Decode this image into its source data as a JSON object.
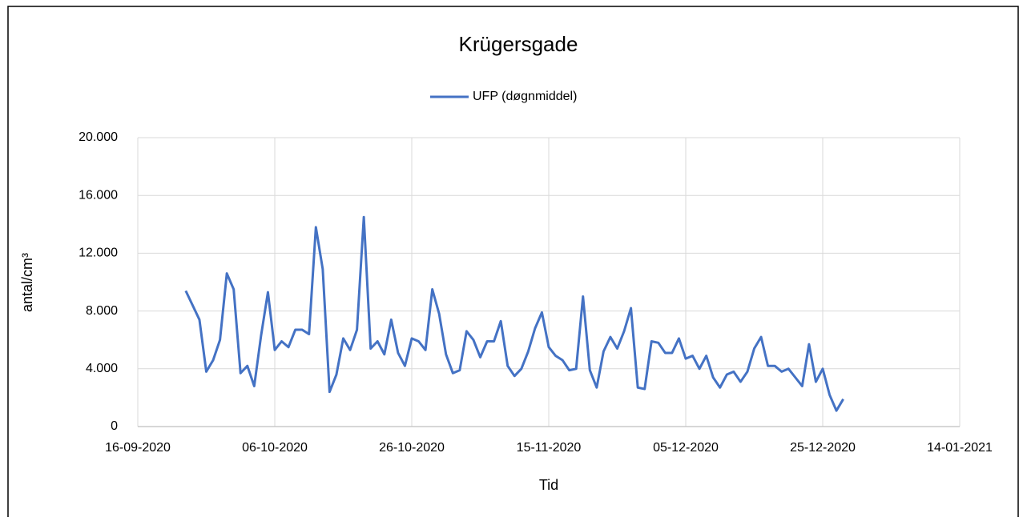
{
  "chart_data": {
    "type": "line",
    "title": "Krügersgade",
    "x": [
      "23-09-2020",
      "24-09-2020",
      "25-09-2020",
      "26-09-2020",
      "27-09-2020",
      "28-09-2020",
      "29-09-2020",
      "30-09-2020",
      "01-10-2020",
      "02-10-2020",
      "03-10-2020",
      "04-10-2020",
      "05-10-2020",
      "06-10-2020",
      "07-10-2020",
      "08-10-2020",
      "09-10-2020",
      "10-10-2020",
      "11-10-2020",
      "12-10-2020",
      "13-10-2020",
      "14-10-2020",
      "15-10-2020",
      "16-10-2020",
      "17-10-2020",
      "18-10-2020",
      "19-10-2020",
      "20-10-2020",
      "21-10-2020",
      "22-10-2020",
      "23-10-2020",
      "24-10-2020",
      "25-10-2020",
      "26-10-2020",
      "27-10-2020",
      "28-10-2020",
      "29-10-2020",
      "30-10-2020",
      "31-10-2020",
      "01-11-2020",
      "02-11-2020",
      "03-11-2020",
      "04-11-2020",
      "05-11-2020",
      "06-11-2020",
      "07-11-2020",
      "08-11-2020",
      "09-11-2020",
      "10-11-2020",
      "11-11-2020",
      "12-11-2020",
      "13-11-2020",
      "14-11-2020",
      "15-11-2020",
      "16-11-2020",
      "17-11-2020",
      "18-11-2020",
      "19-11-2020",
      "20-11-2020",
      "21-11-2020",
      "22-11-2020",
      "23-11-2020",
      "24-11-2020",
      "25-11-2020",
      "26-11-2020",
      "27-11-2020",
      "28-11-2020",
      "29-11-2020",
      "30-11-2020",
      "01-12-2020",
      "02-12-2020",
      "03-12-2020",
      "04-12-2020",
      "05-12-2020",
      "06-12-2020",
      "07-12-2020",
      "08-12-2020",
      "09-12-2020",
      "10-12-2020",
      "11-12-2020",
      "12-12-2020",
      "13-12-2020",
      "14-12-2020",
      "15-12-2020",
      "16-12-2020",
      "17-12-2020",
      "18-12-2020",
      "19-12-2020",
      "20-12-2020",
      "21-12-2020",
      "22-12-2020",
      "23-12-2020",
      "24-12-2020",
      "25-12-2020",
      "26-12-2020",
      "27-12-2020",
      "28-12-2020"
    ],
    "series": [
      {
        "name": "UFP (døgnmiddel)",
        "color": "#4472c4",
        "values": [
          9400,
          8400,
          7400,
          3800,
          4600,
          6000,
          10600,
          9500,
          3700,
          4200,
          2800,
          6300,
          9300,
          5300,
          5900,
          5500,
          6700,
          6700,
          6400,
          13800,
          10900,
          2400,
          3600,
          6100,
          5300,
          6700,
          14500,
          5400,
          5900,
          5000,
          7400,
          5100,
          4200,
          6100,
          5900,
          5300,
          9500,
          7800,
          5000,
          3700,
          3900,
          6600,
          6000,
          4800,
          5900,
          5900,
          7300,
          4200,
          3500,
          4000,
          5200,
          6800,
          7900,
          5500,
          4900,
          4600,
          3900,
          4000,
          9000,
          3900,
          2700,
          5200,
          6200,
          5400,
          6600,
          8200,
          2700,
          2600,
          5900,
          5800,
          5100,
          5100,
          6100,
          4700,
          4900,
          4000,
          4900,
          3400,
          2700,
          3600,
          3800,
          3100,
          3800,
          5400,
          6200,
          4200,
          4200,
          3800,
          4000,
          3400,
          2800,
          5700,
          3100,
          4000,
          2200,
          1100,
          1900
        ]
      }
    ],
    "xlim": [
      "16-09-2020",
      "14-01-2021"
    ],
    "xticks": [
      "16-09-2020",
      "06-10-2020",
      "26-10-2020",
      "15-11-2020",
      "05-12-2020",
      "25-12-2020",
      "14-01-2021"
    ],
    "ylim": [
      0,
      20000
    ],
    "yticks": [
      0,
      {
        "value": 4000,
        "label": "4.000"
      },
      {
        "value": 8000,
        "label": "8.000"
      },
      {
        "value": 12000,
        "label": "12.000"
      },
      {
        "value": 16000,
        "label": "16.000"
      },
      {
        "value": 20000,
        "label": "20.000"
      }
    ],
    "xlabel": "Tid",
    "ylabel": "antal/cm³",
    "grid": true,
    "legend": "top"
  }
}
